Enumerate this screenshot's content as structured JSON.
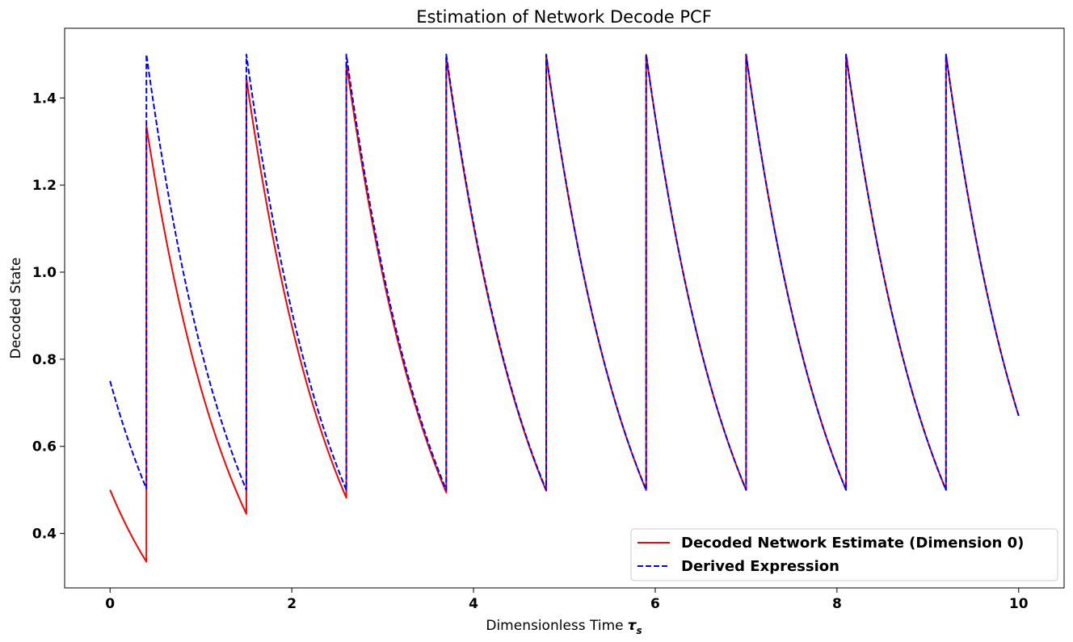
{
  "chart_data": {
    "type": "line",
    "title": "Estimation of Network Decode PCF",
    "xlabel": "Dimensionless Time",
    "xlabel_symbol": "τ",
    "xlabel_subscript": "s",
    "ylabel": "Decoded State",
    "xlim": [
      -0.5,
      10.5
    ],
    "ylim": [
      0.275,
      1.56
    ],
    "xticks": [
      0,
      2,
      4,
      6,
      8,
      10
    ],
    "yticks": [
      0.4,
      0.6,
      0.8,
      1.0,
      1.2,
      1.4
    ],
    "ytick_labels": [
      "0.4",
      "0.6",
      "0.8",
      "1.0",
      "1.2",
      "1.4"
    ],
    "legend_position": "lower-right",
    "pulse_times": [
      0.4,
      1.5,
      2.6,
      3.7,
      4.8,
      5.9,
      7.0,
      8.1,
      9.2
    ],
    "series": [
      {
        "name": "Decoded Network Estimate (Dimension 0)",
        "color": "#ff0000",
        "style": "solid",
        "segments": [
          {
            "x_start": 0.0,
            "x_end": 0.4,
            "y_start": 0.5,
            "y_end": 0.335
          },
          {
            "x_start": 0.4,
            "x_end": 1.5,
            "y_start": 1.335,
            "y_end": 0.445
          },
          {
            "x_start": 1.5,
            "x_end": 2.6,
            "y_start": 1.445,
            "y_end": 0.482
          },
          {
            "x_start": 2.6,
            "x_end": 3.7,
            "y_start": 1.482,
            "y_end": 0.494
          },
          {
            "x_start": 3.7,
            "x_end": 4.8,
            "y_start": 1.494,
            "y_end": 0.498
          },
          {
            "x_start": 4.8,
            "x_end": 5.9,
            "y_start": 1.498,
            "y_end": 0.4995
          },
          {
            "x_start": 5.9,
            "x_end": 7.0,
            "y_start": 1.4995,
            "y_end": 0.4998
          },
          {
            "x_start": 7.0,
            "x_end": 8.1,
            "y_start": 1.4998,
            "y_end": 0.5
          },
          {
            "x_start": 8.1,
            "x_end": 9.2,
            "y_start": 1.5,
            "y_end": 0.5
          },
          {
            "x_start": 9.2,
            "x_end": 10.0,
            "y_start": 1.5,
            "y_end": 0.67
          }
        ]
      },
      {
        "name": "Derived Expression",
        "color": "#0000ff",
        "style": "dashed",
        "segments": [
          {
            "x_start": 0.0,
            "x_end": 0.4,
            "y_start": 0.75,
            "y_end": 0.503
          },
          {
            "x_start": 0.4,
            "x_end": 1.5,
            "y_start": 1.5,
            "y_end": 0.5
          },
          {
            "x_start": 1.5,
            "x_end": 2.6,
            "y_start": 1.5,
            "y_end": 0.5
          },
          {
            "x_start": 2.6,
            "x_end": 3.7,
            "y_start": 1.5,
            "y_end": 0.5
          },
          {
            "x_start": 3.7,
            "x_end": 4.8,
            "y_start": 1.5,
            "y_end": 0.5
          },
          {
            "x_start": 4.8,
            "x_end": 5.9,
            "y_start": 1.5,
            "y_end": 0.5
          },
          {
            "x_start": 5.9,
            "x_end": 7.0,
            "y_start": 1.5,
            "y_end": 0.5
          },
          {
            "x_start": 7.0,
            "x_end": 8.1,
            "y_start": 1.5,
            "y_end": 0.5
          },
          {
            "x_start": 8.1,
            "x_end": 9.2,
            "y_start": 1.5,
            "y_end": 0.5
          },
          {
            "x_start": 9.2,
            "x_end": 10.0,
            "y_start": 1.5,
            "y_end": 0.67
          }
        ]
      }
    ]
  }
}
